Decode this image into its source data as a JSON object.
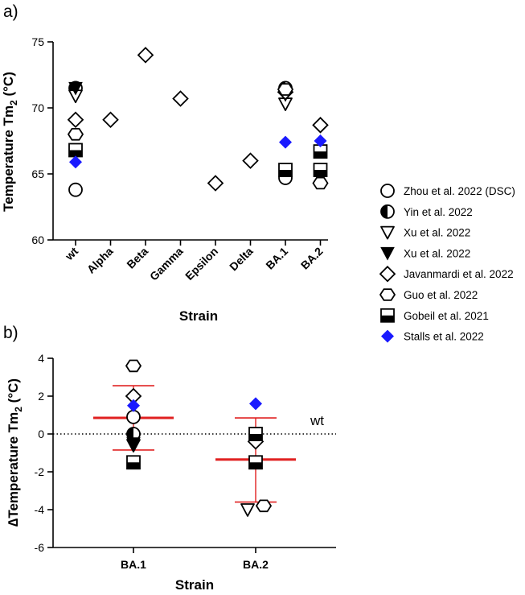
{
  "chart_data": [
    {
      "panel_label": "a)",
      "type": "scatter",
      "title": "",
      "xlabel": "Strain",
      "ylabel_main": "Temperature Tm",
      "ylabel_sub": "2",
      "ylabel_unit": " (°C)",
      "ylim": [
        60,
        75
      ],
      "yticks": [
        60,
        65,
        70,
        75
      ],
      "ytick_labels": [
        "60",
        "65",
        "70",
        "75"
      ],
      "categories": [
        "wt",
        "Alpha",
        "Beta",
        "Gamma",
        "Epsilon",
        "Delta",
        "BA.1",
        "BA.2"
      ],
      "legend_position": "right",
      "series": [
        {
          "name": "Zhou et al. 2022 (DSC)",
          "marker": "circle",
          "points": [
            {
              "x": "wt",
              "y": 63.8
            },
            {
              "x": "BA.1",
              "y": 64.7
            }
          ]
        },
        {
          "name": "Yin et al. 2022",
          "marker": "half-circle",
          "points": [
            {
              "x": "wt",
              "y": 71.5
            },
            {
              "x": "BA.1",
              "y": 71.5
            }
          ]
        },
        {
          "name": "Xu et al. 2022",
          "marker": "triangle-open",
          "points": [
            {
              "x": "wt",
              "y": 70.9
            },
            {
              "x": "BA.1",
              "y": 70.3
            }
          ]
        },
        {
          "name": "Xu et al. 2022",
          "marker": "triangle-filled",
          "points": [
            {
              "x": "wt",
              "y": 71.5
            },
            {
              "x": "BA.1",
              "y": 71.0
            }
          ]
        },
        {
          "name": "Javanmardi et al. 2022",
          "marker": "diamond",
          "points": [
            {
              "x": "wt",
              "y": 69.1
            },
            {
              "x": "Alpha",
              "y": 69.1
            },
            {
              "x": "Beta",
              "y": 74.0
            },
            {
              "x": "Gamma",
              "y": 70.7
            },
            {
              "x": "Epsilon",
              "y": 64.3
            },
            {
              "x": "Delta",
              "y": 66.0
            },
            {
              "x": "BA.1",
              "y": 71.2
            },
            {
              "x": "BA.2",
              "y": 68.7
            }
          ]
        },
        {
          "name": "Guo et al. 2022",
          "marker": "hexagon",
          "points": [
            {
              "x": "wt",
              "y": 68.0
            },
            {
              "x": "BA.1",
              "y": 71.4
            },
            {
              "x": "BA.2",
              "y": 64.3
            }
          ]
        },
        {
          "name": "Gobeil et al. 2021",
          "marker": "half-square",
          "points": [
            {
              "x": "wt",
              "y": 66.8
            },
            {
              "x": "BA.1",
              "y": 65.3
            },
            {
              "x": "BA.2",
              "y": 66.7
            },
            {
              "x": "BA.2",
              "y": 65.3
            }
          ]
        },
        {
          "name": "Stalls et al. 2022",
          "marker": "diamond-blue",
          "points": [
            {
              "x": "wt",
              "y": 65.9
            },
            {
              "x": "BA.1",
              "y": 67.4
            },
            {
              "x": "BA.2",
              "y": 67.5
            }
          ]
        }
      ]
    },
    {
      "panel_label": "b)",
      "type": "scatter",
      "title": "",
      "xlabel": "Strain",
      "ylabel_main": "∆Temperature Tm",
      "ylabel_sub": "2",
      "ylabel_unit": " (°C)",
      "ylim": [
        -6,
        4
      ],
      "yticks": [
        -6,
        -4,
        -2,
        0,
        2,
        4
      ],
      "ytick_labels": [
        "-6",
        "-4",
        "-2",
        "0",
        "2",
        "4"
      ],
      "categories": [
        "BA.1",
        "BA.2"
      ],
      "reference_line": {
        "y": 0,
        "label": "wt",
        "style": "dotted"
      },
      "summary": [
        {
          "x": "BA.1",
          "mean": 0.85,
          "sd_low": -0.85,
          "sd_high": 2.55
        },
        {
          "x": "BA.2",
          "mean": -1.35,
          "sd_low": -3.6,
          "sd_high": 0.85
        }
      ],
      "series": [
        {
          "name": "Zhou et al. 2022 (DSC)",
          "marker": "circle",
          "points": [
            {
              "x": "BA.1",
              "y": 0.9
            }
          ]
        },
        {
          "name": "Yin et al. 2022",
          "marker": "half-circle",
          "points": [
            {
              "x": "BA.1",
              "y": 0.0
            }
          ]
        },
        {
          "name": "Xu et al. 2022",
          "marker": "triangle-open",
          "points": [
            {
              "x": "BA.1",
              "y": -0.6
            },
            {
              "x": "BA.2",
              "y": -4.0
            }
          ]
        },
        {
          "name": "Xu et al. 2022",
          "marker": "triangle-filled",
          "points": [
            {
              "x": "BA.1",
              "y": -0.5
            },
            {
              "x": "BA.2",
              "y": -0.2
            }
          ]
        },
        {
          "name": "Javanmardi et al. 2022",
          "marker": "diamond",
          "points": [
            {
              "x": "BA.1",
              "y": 2.0
            },
            {
              "x": "BA.2",
              "y": -0.4
            }
          ]
        },
        {
          "name": "Guo et al. 2022",
          "marker": "hexagon",
          "points": [
            {
              "x": "BA.1",
              "y": 3.6
            },
            {
              "x": "BA.2",
              "y": -3.8
            }
          ]
        },
        {
          "name": "Gobeil et al. 2021",
          "marker": "half-square",
          "points": [
            {
              "x": "BA.1",
              "y": -1.5
            },
            {
              "x": "BA.2",
              "y": -1.5
            },
            {
              "x": "BA.2",
              "y": 0.0
            }
          ]
        },
        {
          "name": "Stalls et al. 2022",
          "marker": "diamond-blue",
          "points": [
            {
              "x": "BA.1",
              "y": 1.5
            },
            {
              "x": "BA.2",
              "y": 1.6
            }
          ]
        }
      ]
    }
  ],
  "legend": [
    {
      "name": "Zhou et al. 2022 (DSC)",
      "marker": "circle"
    },
    {
      "name": "Yin et al. 2022",
      "marker": "half-circle"
    },
    {
      "name": "Xu et al. 2022",
      "marker": "triangle-open"
    },
    {
      "name": "Xu et al. 2022",
      "marker": "triangle-filled"
    },
    {
      "name": "Javanmardi et al. 2022",
      "marker": "diamond"
    },
    {
      "name": "Guo et al. 2022",
      "marker": "hexagon"
    },
    {
      "name": "Gobeil et al. 2021",
      "marker": "half-square"
    },
    {
      "name": "Stalls et al. 2022",
      "marker": "diamond-blue"
    }
  ],
  "colors": {
    "ink": "#000000",
    "stalls_blue": "#1a1aff",
    "mean_red": "#e02020"
  }
}
